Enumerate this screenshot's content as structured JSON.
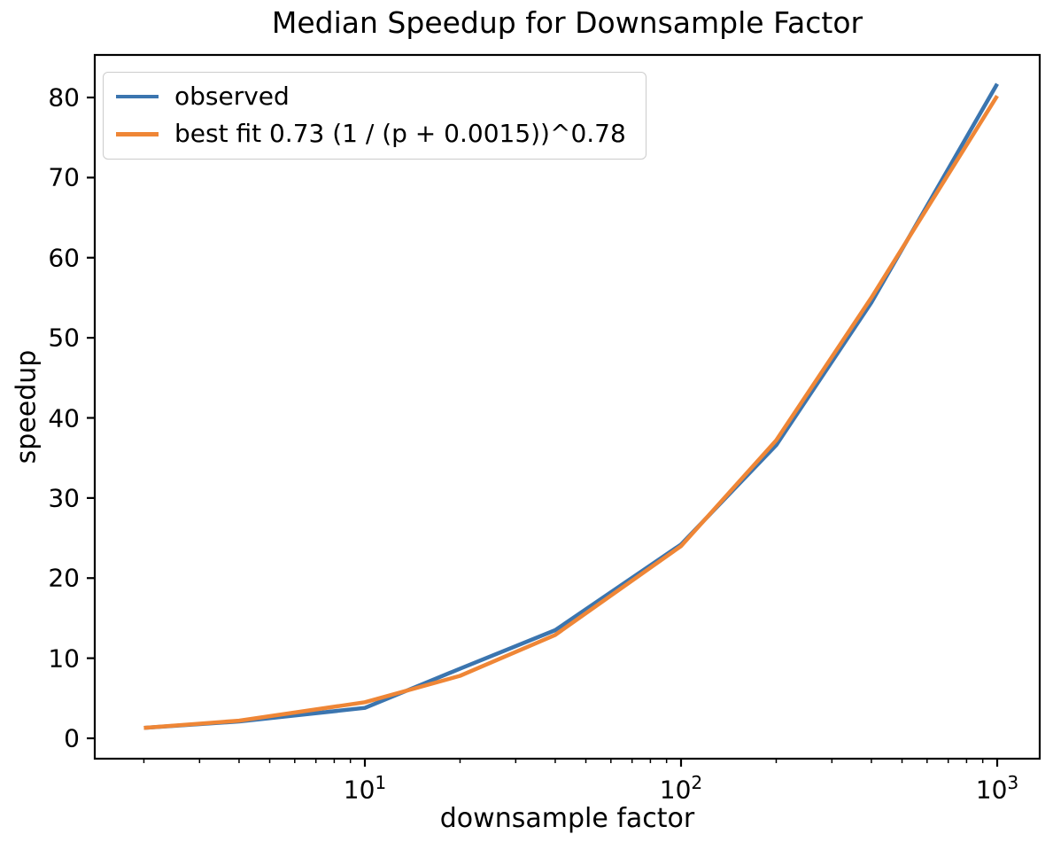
{
  "title": "Median Speedup for Downsample Factor",
  "axes": {
    "xlabel": "downsample factor",
    "ylabel": "speedup",
    "x_scale": "log",
    "x_major_ticks": [
      {
        "value": 10,
        "base": "10",
        "exp": "1"
      },
      {
        "value": 100,
        "base": "10",
        "exp": "2"
      },
      {
        "value": 1000,
        "base": "10",
        "exp": "3"
      }
    ],
    "x_minor_ticks": [
      2,
      3,
      4,
      5,
      6,
      7,
      8,
      9,
      20,
      30,
      40,
      50,
      60,
      70,
      80,
      90,
      200,
      300,
      400,
      500,
      600,
      700,
      800,
      900
    ],
    "y_ticks": [
      "0",
      "10",
      "20",
      "30",
      "40",
      "50",
      "60",
      "70",
      "80"
    ]
  },
  "colors": {
    "observed_line": "#3b75af",
    "fit_line": "#ef8636",
    "axis": "#000000",
    "legend_border": "#cccccc",
    "background": "#ffffff"
  },
  "chart_data": {
    "type": "line",
    "title": "Median Speedup for Downsample Factor",
    "xlabel": "downsample factor",
    "ylabel": "speedup",
    "x_scale": "log",
    "grid": false,
    "legend_position": "upper left",
    "x": [
      2,
      4,
      10,
      20,
      40,
      100,
      200,
      400,
      1000
    ],
    "series": [
      {
        "name": "observed",
        "color": "#3b75af",
        "values": [
          1.3,
          2.1,
          3.8,
          8.7,
          13.5,
          24.2,
          36.6,
          54.4,
          81.7
        ]
      },
      {
        "name": "best fit 0.73 (1 / (p + 0.0015))^0.78",
        "color": "#ef8636",
        "values": [
          1.3,
          2.2,
          4.5,
          7.8,
          12.9,
          24.0,
          37.2,
          55.0,
          80.2
        ]
      }
    ],
    "xlim": [
      1.42,
      1370
    ],
    "ylim": [
      -2.5,
      85.3
    ]
  }
}
